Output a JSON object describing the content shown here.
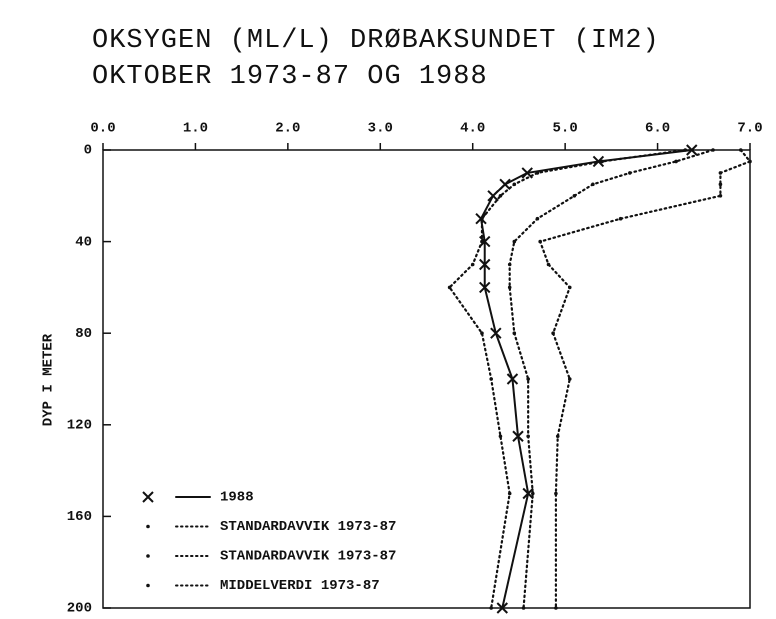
{
  "chart_data": {
    "type": "line",
    "title": "OKSYGEN (ML/L) DRØBAKSUNDET (IM2)",
    "subtitle": "OKTOBER 1973-87 OG 1988",
    "y_label": "DYP I METER",
    "y": [
      0,
      5,
      10,
      15,
      20,
      30,
      40,
      50,
      60,
      80,
      100,
      125,
      150,
      200
    ],
    "xlim": [
      0,
      7
    ],
    "ylim": [
      0,
      200
    ],
    "y_inverted": true,
    "xticks": [
      {
        "value": 0,
        "label": "0.0"
      },
      {
        "value": 1,
        "label": "1.0"
      },
      {
        "value": 2,
        "label": "2.0"
      },
      {
        "value": 3,
        "label": "3.0"
      },
      {
        "value": 4,
        "label": "4.0"
      },
      {
        "value": 5,
        "label": "5.0"
      },
      {
        "value": 6,
        "label": "6.0"
      },
      {
        "value": 7,
        "label": "7.0"
      }
    ],
    "yticks": [
      0,
      40,
      80,
      120,
      160,
      200
    ],
    "series": [
      {
        "name": "1988",
        "color": "#111111",
        "dash": "solid",
        "marker": "x",
        "values": [
          6.37,
          5.36,
          4.59,
          4.35,
          4.22,
          4.09,
          4.13,
          4.13,
          4.13,
          4.25,
          4.43,
          4.49,
          4.6,
          4.32
        ]
      },
      {
        "name": "STANDARDAVVIK 1973-87",
        "color": "#111111",
        "dash": "dotted",
        "marker": "dot",
        "values": [
          6.9,
          7.0,
          6.68,
          6.68,
          6.68,
          5.6,
          4.73,
          4.82,
          5.05,
          4.87,
          5.05,
          4.92,
          4.9,
          4.9
        ]
      },
      {
        "name": "STANDARDAVVIK 1973-87",
        "color": "#111111",
        "dash": "dotted",
        "marker": "dot",
        "values": [
          6.3,
          5.4,
          4.7,
          4.45,
          4.3,
          4.1,
          4.1,
          4.0,
          3.75,
          4.1,
          4.2,
          4.3,
          4.4,
          4.2
        ]
      },
      {
        "name": "MIDDELVERDI 1973-87",
        "color": "#111111",
        "dash": "dotted",
        "marker": "dot",
        "values": [
          6.6,
          6.2,
          5.7,
          5.3,
          5.1,
          4.7,
          4.45,
          4.4,
          4.4,
          4.45,
          4.6,
          4.6,
          4.65,
          4.55
        ]
      }
    ]
  }
}
